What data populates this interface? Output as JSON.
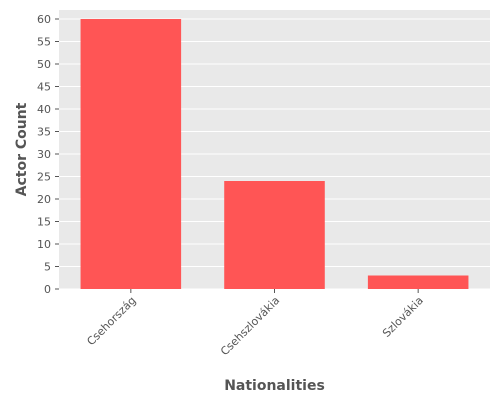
{
  "chart_data": {
    "type": "bar",
    "categories": [
      "Csehország",
      "Csehszlovákia",
      "Szlovákia"
    ],
    "values": [
      60,
      24,
      3
    ],
    "xlabel": "Nationalities",
    "ylabel": "Actor Count",
    "ylim": [
      0,
      62
    ],
    "yticks": [
      0,
      5,
      10,
      15,
      20,
      25,
      30,
      35,
      40,
      45,
      50,
      55,
      60
    ],
    "grid": true,
    "colors": {
      "bar": "#ff5555",
      "background": "#e9e9e9",
      "grid": "#ffffff",
      "text": "#555555"
    }
  }
}
